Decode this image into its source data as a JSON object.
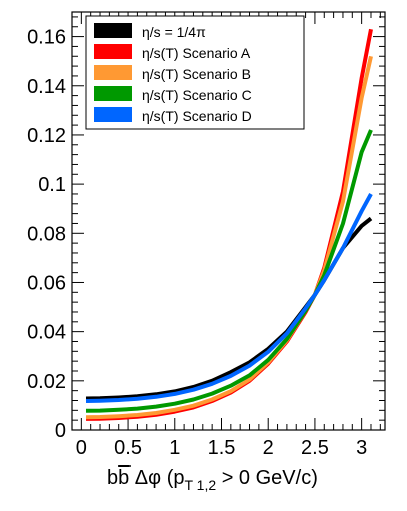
{
  "chart_data": {
    "type": "line",
    "title": "",
    "xlabel_parts": {
      "b": "b",
      "bbar": "b",
      "dphi": "Δφ",
      "paren_open": "(p",
      "sub": "T 1,2",
      "rest": "> 0 GeV/c)"
    },
    "ylabel": "",
    "xlim": [
      -0.1,
      3.25
    ],
    "ylim": [
      0,
      0.17
    ],
    "x_ticks": [
      0,
      0.5,
      1,
      1.5,
      2,
      2.5,
      3
    ],
    "x_tick_labels": [
      "0",
      "0.5",
      "1",
      "1.5",
      "2",
      "2.5",
      "3"
    ],
    "y_ticks": [
      0,
      0.02,
      0.04,
      0.06,
      0.08,
      0.1,
      0.12,
      0.14,
      0.16
    ],
    "y_tick_labels": [
      "0",
      "0.02",
      "0.04",
      "0.06",
      "0.08",
      "0.1",
      "0.12",
      "0.14",
      "0.16"
    ],
    "legend_position": "top-left",
    "series": [
      {
        "name": "η/s = 1/4π",
        "color": "#000000",
        "x": [
          0.05,
          0.2,
          0.4,
          0.6,
          0.8,
          1.0,
          1.2,
          1.4,
          1.6,
          1.8,
          2.0,
          2.2,
          2.4,
          2.5,
          2.6,
          2.8,
          3.0,
          3.1
        ],
        "y": [
          0.0128,
          0.0129,
          0.0132,
          0.0137,
          0.0145,
          0.0157,
          0.0175,
          0.02,
          0.0235,
          0.0275,
          0.033,
          0.04,
          0.05,
          0.055,
          0.061,
          0.074,
          0.083,
          0.086
        ]
      },
      {
        "name": "η/s(T) Scenario A",
        "color": "#ff0000",
        "x": [
          0.05,
          0.2,
          0.4,
          0.6,
          0.8,
          1.0,
          1.2,
          1.4,
          1.6,
          1.8,
          2.0,
          2.2,
          2.4,
          2.5,
          2.6,
          2.8,
          3.0,
          3.1
        ],
        "y": [
          0.0045,
          0.0046,
          0.0049,
          0.0054,
          0.0062,
          0.0075,
          0.0092,
          0.0118,
          0.0152,
          0.02,
          0.027,
          0.036,
          0.048,
          0.055,
          0.066,
          0.097,
          0.143,
          0.163
        ]
      },
      {
        "name": "η/s(T) Scenario B",
        "color": "#ff9933",
        "x": [
          0.05,
          0.2,
          0.4,
          0.6,
          0.8,
          1.0,
          1.2,
          1.4,
          1.6,
          1.8,
          2.0,
          2.2,
          2.4,
          2.5,
          2.6,
          2.8,
          3.0,
          3.1
        ],
        "y": [
          0.0052,
          0.0053,
          0.0056,
          0.0061,
          0.0069,
          0.0082,
          0.0099,
          0.0124,
          0.0158,
          0.0205,
          0.0275,
          0.0365,
          0.0485,
          0.055,
          0.065,
          0.093,
          0.135,
          0.152
        ]
      },
      {
        "name": "η/s(T) Scenario C",
        "color": "#009900",
        "x": [
          0.05,
          0.2,
          0.4,
          0.6,
          0.8,
          1.0,
          1.2,
          1.4,
          1.6,
          1.8,
          2.0,
          2.2,
          2.4,
          2.5,
          2.6,
          2.8,
          3.0,
          3.1
        ],
        "y": [
          0.0078,
          0.0079,
          0.0082,
          0.0087,
          0.0095,
          0.0107,
          0.0124,
          0.0148,
          0.018,
          0.0222,
          0.0285,
          0.037,
          0.0485,
          0.055,
          0.063,
          0.084,
          0.113,
          0.122
        ]
      },
      {
        "name": "η/s(T) Scenario D",
        "color": "#0066ff",
        "x": [
          0.05,
          0.2,
          0.4,
          0.6,
          0.8,
          1.0,
          1.2,
          1.4,
          1.6,
          1.8,
          2.0,
          2.2,
          2.4,
          2.5,
          2.6,
          2.8,
          3.0,
          3.1
        ],
        "y": [
          0.0118,
          0.0119,
          0.0122,
          0.0127,
          0.0135,
          0.0147,
          0.0164,
          0.0188,
          0.022,
          0.0262,
          0.0318,
          0.0393,
          0.0495,
          0.055,
          0.061,
          0.074,
          0.089,
          0.096
        ]
      }
    ]
  }
}
